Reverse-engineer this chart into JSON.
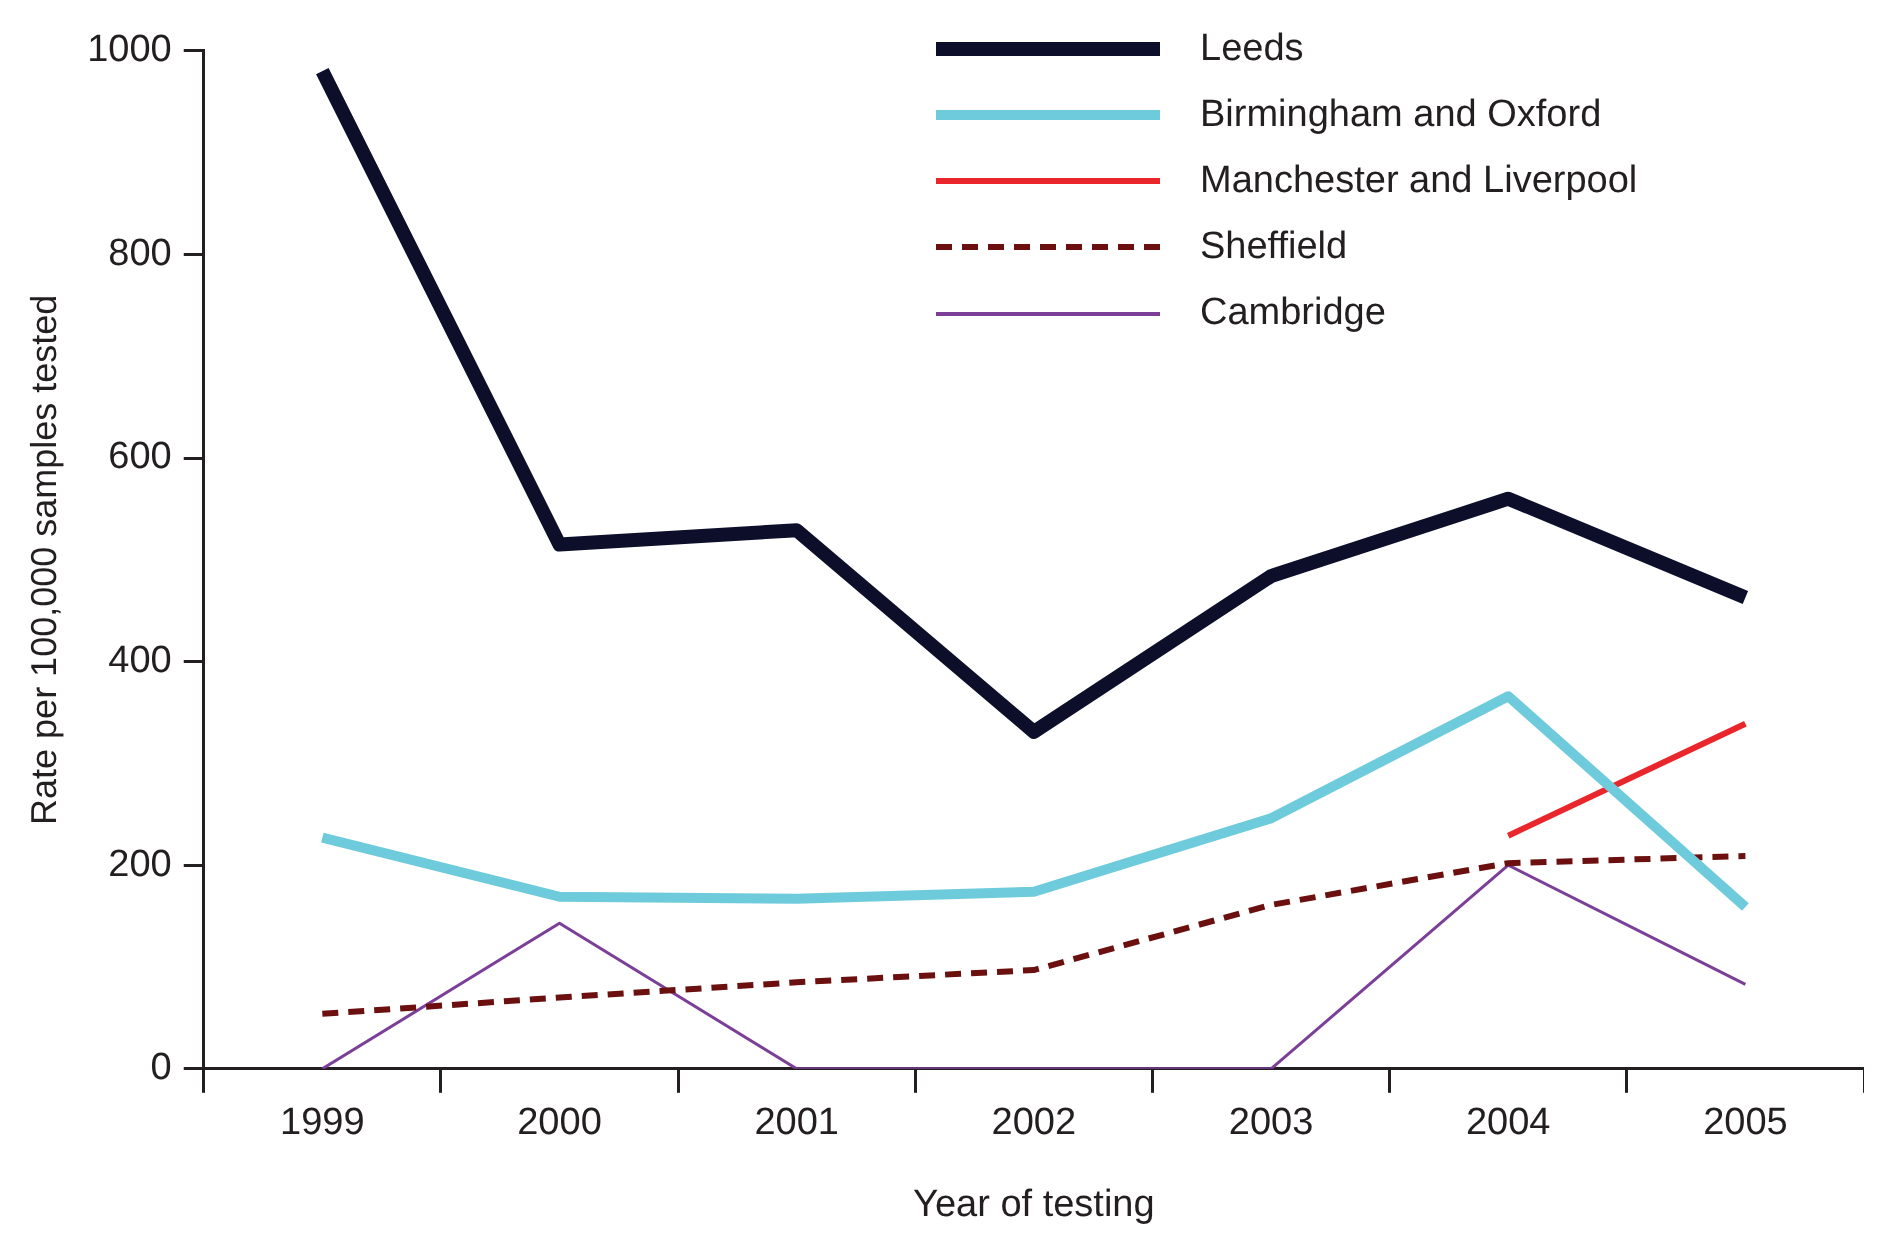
{
  "chart_data": {
    "type": "line",
    "xlabel": "Year of testing",
    "ylabel": "Rate per 100,000 samples tested",
    "categories": [
      "1999",
      "2000",
      "2001",
      "2002",
      "2003",
      "2004",
      "2005"
    ],
    "ylim": [
      0,
      1000
    ],
    "yticks": [
      0,
      200,
      400,
      600,
      800,
      1000
    ],
    "grid": false,
    "legend": "top right",
    "marker": "none",
    "series": [
      {
        "name": "Leeds",
        "color": "#0d0f2a",
        "values": [
          980,
          515,
          529,
          331,
          484,
          560,
          463
        ]
      },
      {
        "name": "Birmingham and Oxford",
        "color": "#6ecbdc",
        "values": [
          227,
          169,
          167,
          174,
          246,
          366,
          159
        ]
      },
      {
        "name": "Manchester and Liverpool",
        "color": "#e8262b",
        "values": [
          null,
          null,
          null,
          null,
          null,
          229,
          339
        ]
      },
      {
        "name": "Sheffield",
        "color": "#6b0f0f",
        "line_style": "dashed",
        "values": [
          54,
          70,
          85,
          97,
          161,
          202,
          209
        ]
      },
      {
        "name": "Cambridge",
        "color": "#7b3f98",
        "values": [
          0,
          143,
          0,
          0,
          0,
          200,
          83
        ]
      }
    ]
  }
}
